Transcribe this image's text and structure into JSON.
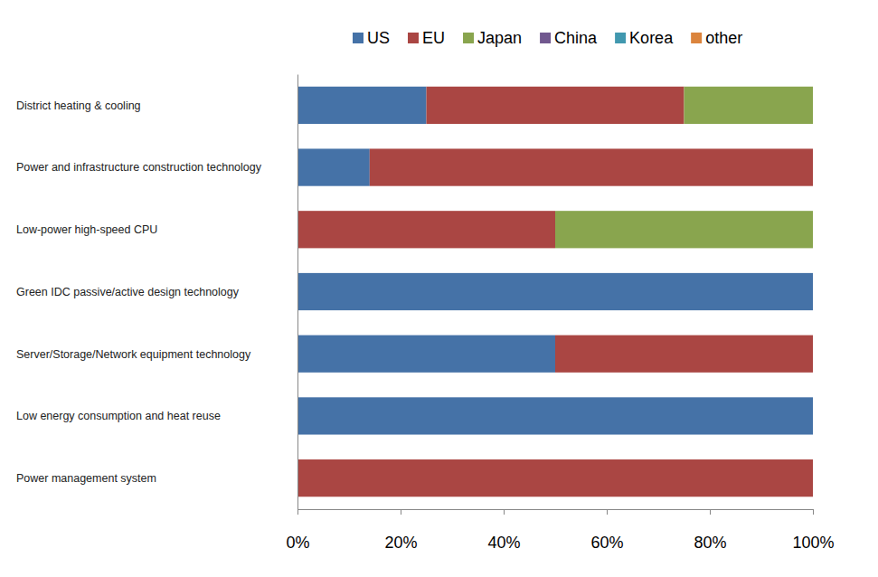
{
  "chart_data": {
    "type": "bar",
    "orientation": "horizontal",
    "stacked": true,
    "categories": [
      "District heating & cooling",
      "Power and infrastructure construction technology",
      "Low-power high-speed CPU",
      "Green IDC passive/active design technology",
      "Server/Storage/Network equipment technology",
      "Low energy consumption and heat reuse",
      "Power management system"
    ],
    "series": [
      {
        "name": "US",
        "color": "#4572a7",
        "values": [
          25,
          14,
          0,
          100,
          50,
          100,
          0
        ]
      },
      {
        "name": "EU",
        "color": "#aa4643",
        "values": [
          50,
          86,
          50,
          0,
          50,
          0,
          100
        ]
      },
      {
        "name": "Japan",
        "color": "#89a54e",
        "values": [
          25,
          0,
          50,
          0,
          0,
          0,
          0
        ]
      },
      {
        "name": "China",
        "color": "#71588f",
        "values": [
          0,
          0,
          0,
          0,
          0,
          0,
          0
        ]
      },
      {
        "name": "Korea",
        "color": "#4198af",
        "values": [
          0,
          0,
          0,
          0,
          0,
          0,
          0
        ]
      },
      {
        "name": "other",
        "color": "#db843d",
        "values": [
          0,
          0,
          0,
          0,
          0,
          0,
          0
        ]
      }
    ],
    "xlim": [
      0,
      100
    ],
    "xticks": [
      {
        "value": 0,
        "label": "0%"
      },
      {
        "value": 20,
        "label": "20%"
      },
      {
        "value": 40,
        "label": "40%"
      },
      {
        "value": 60,
        "label": "60%"
      },
      {
        "value": 80,
        "label": "80%"
      },
      {
        "value": 100,
        "label": "100%"
      }
    ],
    "legend": "top",
    "grid": false
  }
}
